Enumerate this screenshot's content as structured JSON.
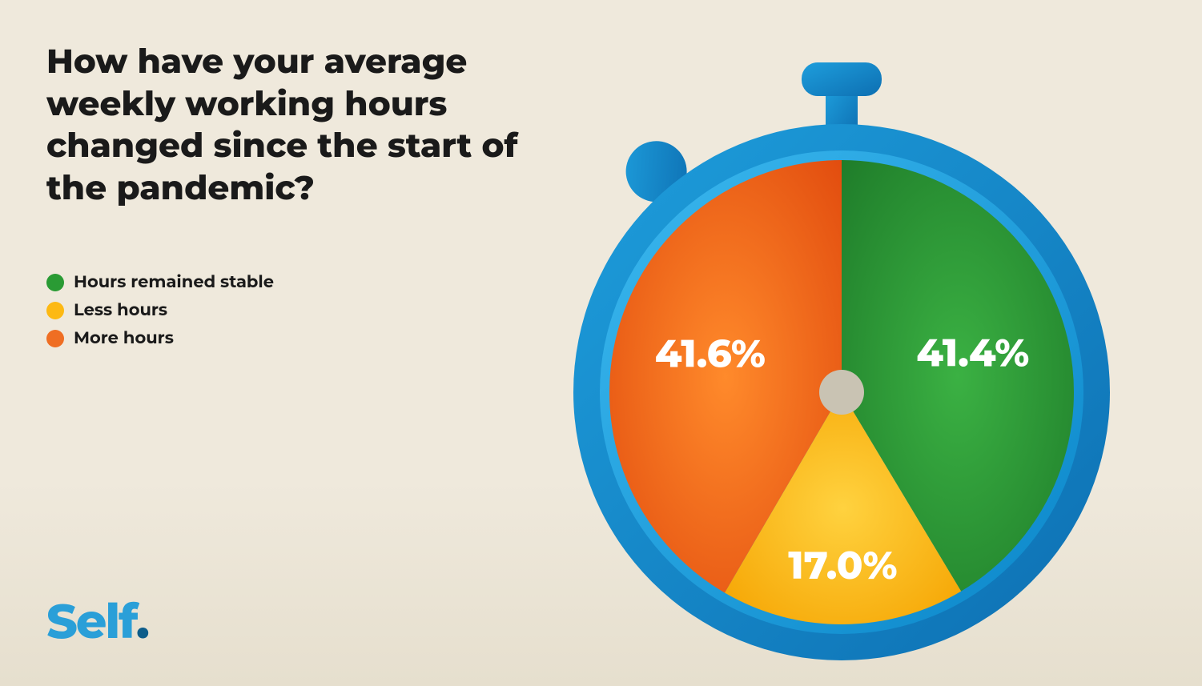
{
  "title": "How have your average weekly working hours changed since the start of the pandemic?",
  "legend": [
    {
      "label": "Hours remained stable",
      "color": "#2a9b34"
    },
    {
      "label": "Less hours",
      "color": "#fdb913"
    },
    {
      "label": "More hours",
      "color": "#ef6e23"
    }
  ],
  "chart": {
    "type": "pie",
    "slices": [
      {
        "key": "stable",
        "value": 41.4,
        "label": "41.4%",
        "color_start": "#3bb143",
        "color_end": "#1f7d2a"
      },
      {
        "key": "less",
        "value": 17.0,
        "label": "17.0%",
        "color_start": "#ffd23f",
        "color_end": "#f5a300"
      },
      {
        "key": "more",
        "value": 41.6,
        "label": "41.6%",
        "color_start": "#ff8a2b",
        "color_end": "#e24d0f"
      }
    ],
    "ring_colors": {
      "outer_start": "#1e9edc",
      "outer_end": "#0d6fb2",
      "inner_start": "#3bb8ef",
      "inner_end": "#0a86c9"
    },
    "hub_color": "#c9c3b3",
    "background": "#efe9dc",
    "label_fontsize": 48,
    "label_color": "#ffffff"
  },
  "logo": {
    "text": "Self",
    "dot": ".",
    "color": "#2a9fd8",
    "dot_color": "#0d5d8a"
  }
}
